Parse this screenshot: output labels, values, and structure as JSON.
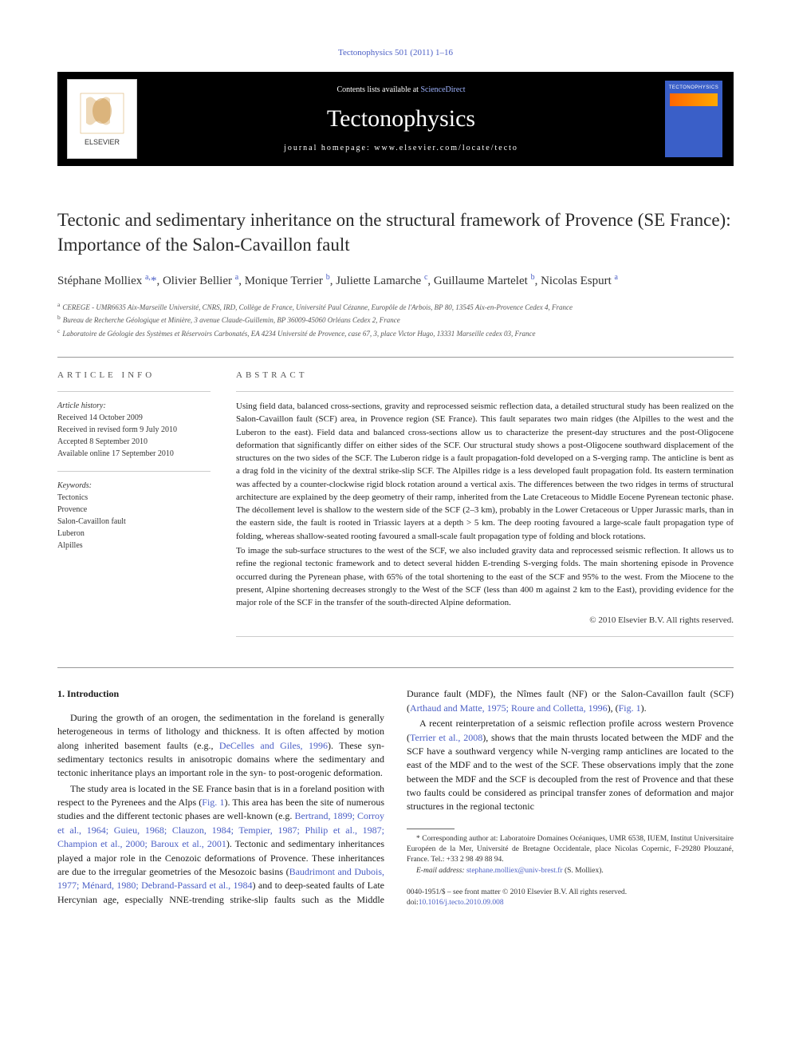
{
  "journal_ref": "Tectonophysics 501 (2011) 1–16",
  "header": {
    "contents_prefix": "Contents lists available at ",
    "contents_link": "ScienceDirect",
    "journal_name": "Tectonophysics",
    "homepage_prefix": "journal homepage: ",
    "homepage_url": "www.elsevier.com/locate/tecto",
    "publisher_logo": "ELSEVIER",
    "cover_label": "TECTONOPHYSICS"
  },
  "title": "Tectonic and sedimentary inheritance on the structural framework of Provence (SE France): Importance of the Salon-Cavaillon fault",
  "authors_html": "Stéphane Molliex <sup>a,</sup><span class='corr'>*</span>, Olivier Bellier <sup>a</sup>, Monique Terrier <sup>b</sup>, Juliette Lamarche <sup>c</sup>, Guillaume Martelet <sup>b</sup>, Nicolas Espurt <sup>a</sup>",
  "affiliations": [
    {
      "sup": "a",
      "text": "CEREGE - UMR6635 Aix-Marseille Université, CNRS, IRD, Collège de France, Université Paul Cézanne, Europôle de l'Arbois, BP 80, 13545 Aix-en-Provence Cedex 4, France"
    },
    {
      "sup": "b",
      "text": "Bureau de Recherche Géologique et Minière, 3 avenue Claude-Guillemin, BP 36009-45060 Orléans Cedex 2, France"
    },
    {
      "sup": "c",
      "text": "Laboratoire de Géologie des Systèmes et Réservoirs Carbonatés, EA 4234 Université de Provence, case 67, 3, place Victor Hugo, 13331 Marseille cedex 03, France"
    }
  ],
  "article_info": {
    "heading": "article info",
    "history_title": "Article history:",
    "history": [
      "Received 14 October 2009",
      "Received in revised form 9 July 2010",
      "Accepted 8 September 2010",
      "Available online 17 September 2010"
    ],
    "keywords_title": "Keywords:",
    "keywords": [
      "Tectonics",
      "Provence",
      "Salon-Cavaillon fault",
      "Luberon",
      "Alpilles"
    ]
  },
  "abstract": {
    "heading": "abstract",
    "paragraphs": [
      "Using field data, balanced cross-sections, gravity and reprocessed seismic reflection data, a detailed structural study has been realized on the Salon-Cavaillon fault (SCF) area, in Provence region (SE France). This fault separates two main ridges (the Alpilles to the west and the Luberon to the east). Field data and balanced cross-sections allow us to characterize the present-day structures and the post-Oligocene deformation that significantly differ on either sides of the SCF. Our structural study shows a post-Oligocene southward displacement of the structures on the two sides of the SCF. The Luberon ridge is a fault propagation-fold developed on a S-verging ramp. The anticline is bent as a drag fold in the vicinity of the dextral strike-slip SCF. The Alpilles ridge is a less developed fault propagation fold. Its eastern termination was affected by a counter-clockwise rigid block rotation around a vertical axis. The differences between the two ridges in terms of structural architecture are explained by the deep geometry of their ramp, inherited from the Late Cretaceous to Middle Eocene Pyrenean tectonic phase. The décollement level is shallow to the western side of the SCF (2–3 km), probably in the Lower Cretaceous or Upper Jurassic marls, than in the eastern side, the fault is rooted in Triassic layers at a depth > 5 km. The deep rooting favoured a large-scale fault propagation type of folding, whereas shallow-seated rooting favoured a small-scale fault propagation type of folding and block rotations.",
      "To image the sub-surface structures to the west of the SCF, we also included gravity data and reprocessed seismic reflection. It allows us to refine the regional tectonic framework and to detect several hidden E-trending S-verging folds. The main shortening episode in Provence occurred during the Pyrenean phase, with 65% of the total shortening to the east of the SCF and 95% to the west. From the Miocene to the present, Alpine shortening decreases strongly to the West of the SCF (less than 400 m against 2 km to the East), providing evidence for the major role of the SCF in the transfer of the south-directed Alpine deformation."
    ],
    "copyright": "© 2010 Elsevier B.V. All rights reserved."
  },
  "intro": {
    "heading": "1. Introduction",
    "p1_pre": "During the growth of an orogen, the sedimentation in the foreland is generally heterogeneous in terms of lithology and thickness. It is often affected by motion along inherited basement faults (e.g., ",
    "p1_link1": "DeCelles and Giles, 1996",
    "p1_post": "). These syn-sedimentary tectonics results in anisotropic domains where the sedimentary and tectonic inheritance plays an important role in the syn- to post-orogenic deformation.",
    "p2_pre": "The study area is located in the SE France basin that is in a foreland position with respect to the Pyrenees and the Alps (",
    "p2_link_fig": "Fig. 1",
    "p2_mid": "). This area has been the site of numerous studies and the different tectonic phases are well-known (e.g. ",
    "p2_link_refs": "Bertrand, 1899; Corroy et al., 1964; Guieu, 1968; Clauzon, 1984; Tempier, 1987; Philip et al., 1987; Champion et al., 2000; Baroux et al., 2001",
    "p2_mid2": "). Tectonic and sedimentary inheritances played a major role in the Cenozoic deformations of Provence. These inheritances are due to the irregular geometries of the Mesozoic basins (",
    "p2_link_refs2": "Baudrimont and Dubois, 1977; Ménard, 1980; Debrand-Passard et al., 1984",
    "p2_mid3": ") and to deep-seated faults of Late Hercynian age, especially NNE-trending strike-slip faults such as the Middle Durance fault (MDF), the Nîmes fault (NF) or the Salon-Cavaillon fault (SCF) (",
    "p2_link_refs3": "Arthaud and Matte, 1975; Roure and Colletta, 1996",
    "p2_post": "), (",
    "p2_link_fig2": "Fig. 1",
    "p2_end": ").",
    "p3_pre": "A recent reinterpretation of a seismic reflection profile across western Provence (",
    "p3_link1": "Terrier et al., 2008",
    "p3_post": "), shows that the main thrusts located between the MDF and the SCF have a southward vergency while N-verging ramp anticlines are located to the east of the MDF and to the west of the SCF. These observations imply that the zone between the MDF and the SCF is decoupled from the rest of Provence and that these two faults could be considered as principal transfer zones of deformation and major structures in the regional tectonic"
  },
  "footnote": {
    "corr_label": "* Corresponding author at: Laboratoire Domaines Océaniques, UMR 6538, IUEM, Institut Universitaire Européen de la Mer, Université de Bretagne Occidentale, place Nicolas Copernic, F-29280 Plouzané, France. Tel.: +33 2 98 49 88 94.",
    "email_label": "E-mail address: ",
    "email": "stephane.molliex@univ-brest.fr",
    "email_suffix": " (S. Molliex)."
  },
  "footer": {
    "issn_line": "0040-1951/$ – see front matter © 2010 Elsevier B.V. All rights reserved.",
    "doi_prefix": "doi:",
    "doi": "10.1016/j.tecto.2010.09.008"
  },
  "colors": {
    "link": "#4a5ec5",
    "header_bg": "#000000",
    "cover_bg": "#3a5fc8",
    "text": "#1a1a1a"
  }
}
